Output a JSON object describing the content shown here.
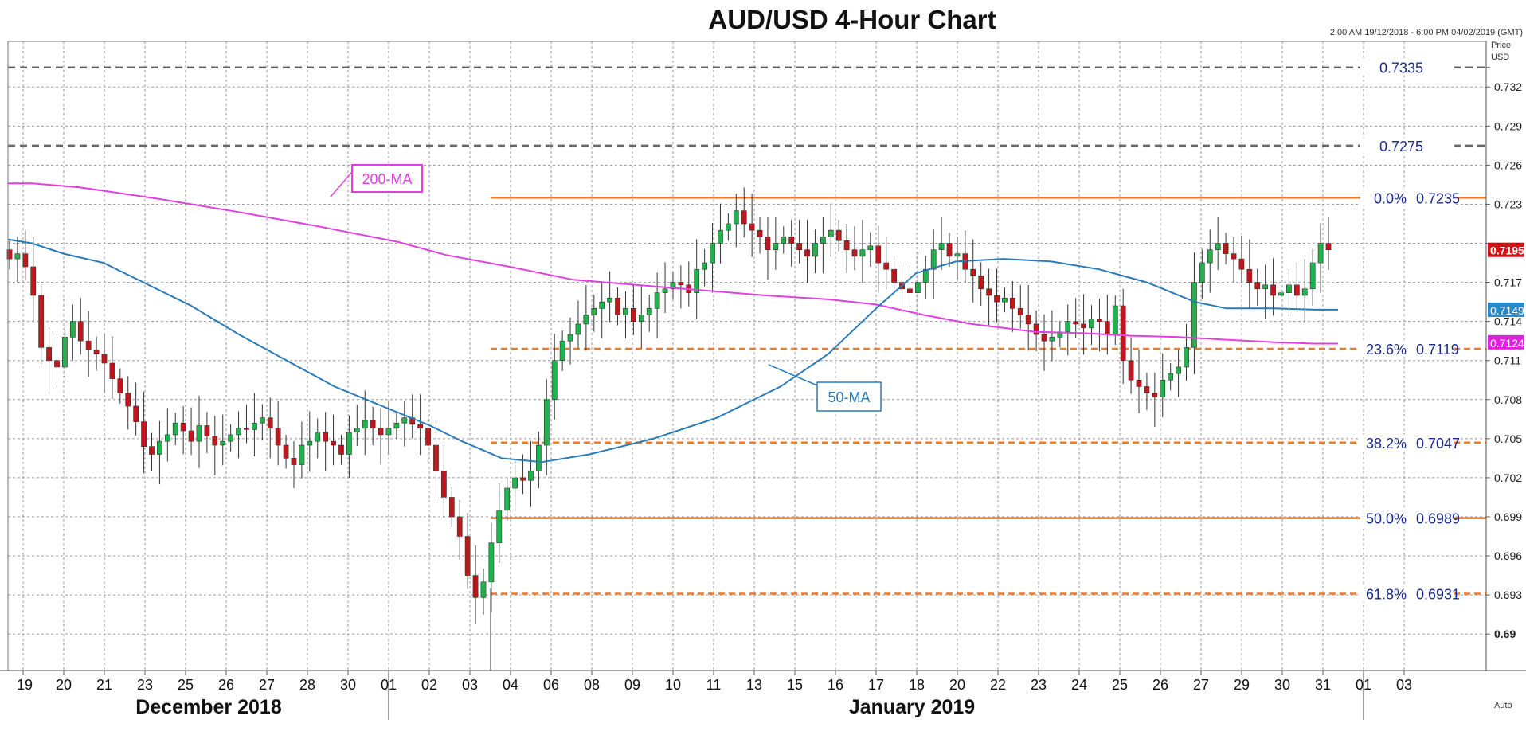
{
  "header": {
    "title": "AUD/USD 4-Hour Chart",
    "time_range": "2:00 AM 19/12/2018 - 6:00 PM 04/02/2019 (GMT)"
  },
  "axis": {
    "price_label_line1": "Price",
    "price_label_line2": "USD",
    "auto_label": "Auto"
  },
  "chart_data": {
    "type": "candlestick",
    "title": "AUD/USD 4-Hour Chart",
    "ylim": [
      0.6872,
      0.7355
    ],
    "y_ticks": [
      "0.7335",
      "0.732",
      "0.729",
      "0.726",
      "0.723",
      "0.72",
      "0.717",
      "0.714",
      "0.711",
      "0.708",
      "0.705",
      "0.702",
      "0.699",
      "0.696",
      "0.693",
      "0.69"
    ],
    "x_tick_labels": [
      "19",
      "20",
      "21",
      "23",
      "25",
      "26",
      "27",
      "28",
      "30",
      "01",
      "02",
      "03",
      "04",
      "06",
      "08",
      "09",
      "10",
      "11",
      "13",
      "15",
      "16",
      "17",
      "18",
      "20",
      "22",
      "23",
      "24",
      "25",
      "26",
      "27",
      "29",
      "30",
      "31",
      "01",
      "03"
    ],
    "month_labels": [
      "December 2018",
      "January 2019"
    ],
    "current_price": "0.7195",
    "ma_labels": {
      "ma200": "200-MA",
      "ma50": "50-MA"
    },
    "ma_end_values": {
      "ma50": "0.7149",
      "ma200": "0.7124"
    },
    "horizontal_levels": [
      {
        "pct": "",
        "value": "0.7335",
        "style": "resistance"
      },
      {
        "pct": "",
        "value": "0.7275",
        "style": "resistance"
      },
      {
        "pct": "0.0%",
        "value": "0.7235",
        "style": "fib-solid"
      },
      {
        "pct": "23.6%",
        "value": "0.7119",
        "style": "fib-dashed"
      },
      {
        "pct": "38.2%",
        "value": "0.7047",
        "style": "fib-dashed"
      },
      {
        "pct": "50.0%",
        "value": "0.6989",
        "style": "fib-solid"
      },
      {
        "pct": "61.8%",
        "value": "0.6931",
        "style": "fib-dashed"
      }
    ],
    "candle_closes": [
      0.7188,
      0.7192,
      0.7182,
      0.716,
      0.712,
      0.711,
      0.7105,
      0.7128,
      0.714,
      0.7125,
      0.7118,
      0.7115,
      0.7108,
      0.7096,
      0.7085,
      0.7075,
      0.7063,
      0.7044,
      0.7038,
      0.7048,
      0.7053,
      0.7062,
      0.7056,
      0.7048,
      0.706,
      0.7052,
      0.7045,
      0.7048,
      0.7053,
      0.7058,
      0.7057,
      0.7062,
      0.7066,
      0.7058,
      0.7045,
      0.7035,
      0.703,
      0.7045,
      0.7048,
      0.7055,
      0.7048,
      0.7045,
      0.7038,
      0.7055,
      0.7058,
      0.7064,
      0.7058,
      0.7053,
      0.7058,
      0.7062,
      0.7066,
      0.7061,
      0.7058,
      0.7045,
      0.7025,
      0.7005,
      0.699,
      0.6975,
      0.6945,
      0.6928,
      0.694,
      0.697,
      0.6995,
      0.7012,
      0.702,
      0.7018,
      0.7025,
      0.7045,
      0.708,
      0.711,
      0.7125,
      0.713,
      0.7138,
      0.7145,
      0.715,
      0.7155,
      0.7158,
      0.7145,
      0.715,
      0.714,
      0.7145,
      0.715,
      0.7162,
      0.7165,
      0.717,
      0.7168,
      0.7162,
      0.718,
      0.7185,
      0.72,
      0.721,
      0.7215,
      0.7225,
      0.7215,
      0.721,
      0.7205,
      0.7195,
      0.72,
      0.7205,
      0.72,
      0.7195,
      0.719,
      0.72,
      0.7205,
      0.721,
      0.7202,
      0.7195,
      0.719,
      0.7195,
      0.7198,
      0.7185,
      0.718,
      0.717,
      0.7165,
      0.7162,
      0.717,
      0.718,
      0.7195,
      0.72,
      0.719,
      0.7192,
      0.718,
      0.7175,
      0.7165,
      0.716,
      0.7155,
      0.7158,
      0.715,
      0.7145,
      0.7138,
      0.713,
      0.7125,
      0.7128,
      0.7132,
      0.714,
      0.7138,
      0.7135,
      0.7142,
      0.714,
      0.713,
      0.7152,
      0.711,
      0.7095,
      0.709,
      0.7085,
      0.7082,
      0.7095,
      0.71,
      0.7105,
      0.712,
      0.717,
      0.7185,
      0.7195,
      0.72,
      0.7192,
      0.7188,
      0.718,
      0.717,
      0.7165,
      0.7168,
      0.716,
      0.7162,
      0.7168,
      0.716,
      0.7165,
      0.7185,
      0.72,
      0.7195
    ]
  }
}
